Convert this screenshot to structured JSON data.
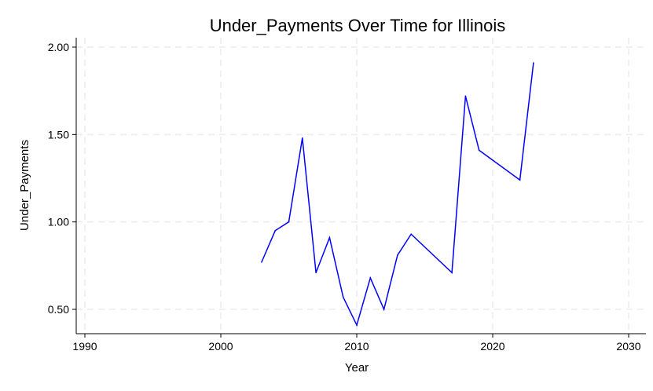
{
  "chart_data": {
    "type": "line",
    "title": "Under_Payments Over Time for Illinois",
    "xlabel": "Year",
    "ylabel": "Under_Payments",
    "xlim": [
      1990,
      2030
    ],
    "ylim": [
      0.35,
      2.05
    ],
    "xticks": [
      1990,
      2000,
      2010,
      2020,
      2030
    ],
    "xtick_labels": [
      "1990",
      "2000",
      "2010",
      "2020",
      "2030"
    ],
    "yticks": [
      0.5,
      1.0,
      1.5,
      2.0
    ],
    "ytick_labels": [
      "0.50",
      "1.00",
      "1.50",
      "2.00"
    ],
    "grid": true,
    "line_color": "#0000ff",
    "series": [
      {
        "x": [
          2003,
          2004,
          2005,
          2006,
          2007,
          2008,
          2009,
          2010,
          2011,
          2012,
          2013,
          2014,
          2017,
          2018,
          2019,
          2022,
          2023
        ],
        "y": [
          0.77,
          0.95,
          1.0,
          1.48,
          0.71,
          0.91,
          0.57,
          0.41,
          0.68,
          0.5,
          0.81,
          0.93,
          0.71,
          1.72,
          1.41,
          1.24,
          1.91
        ]
      }
    ]
  }
}
